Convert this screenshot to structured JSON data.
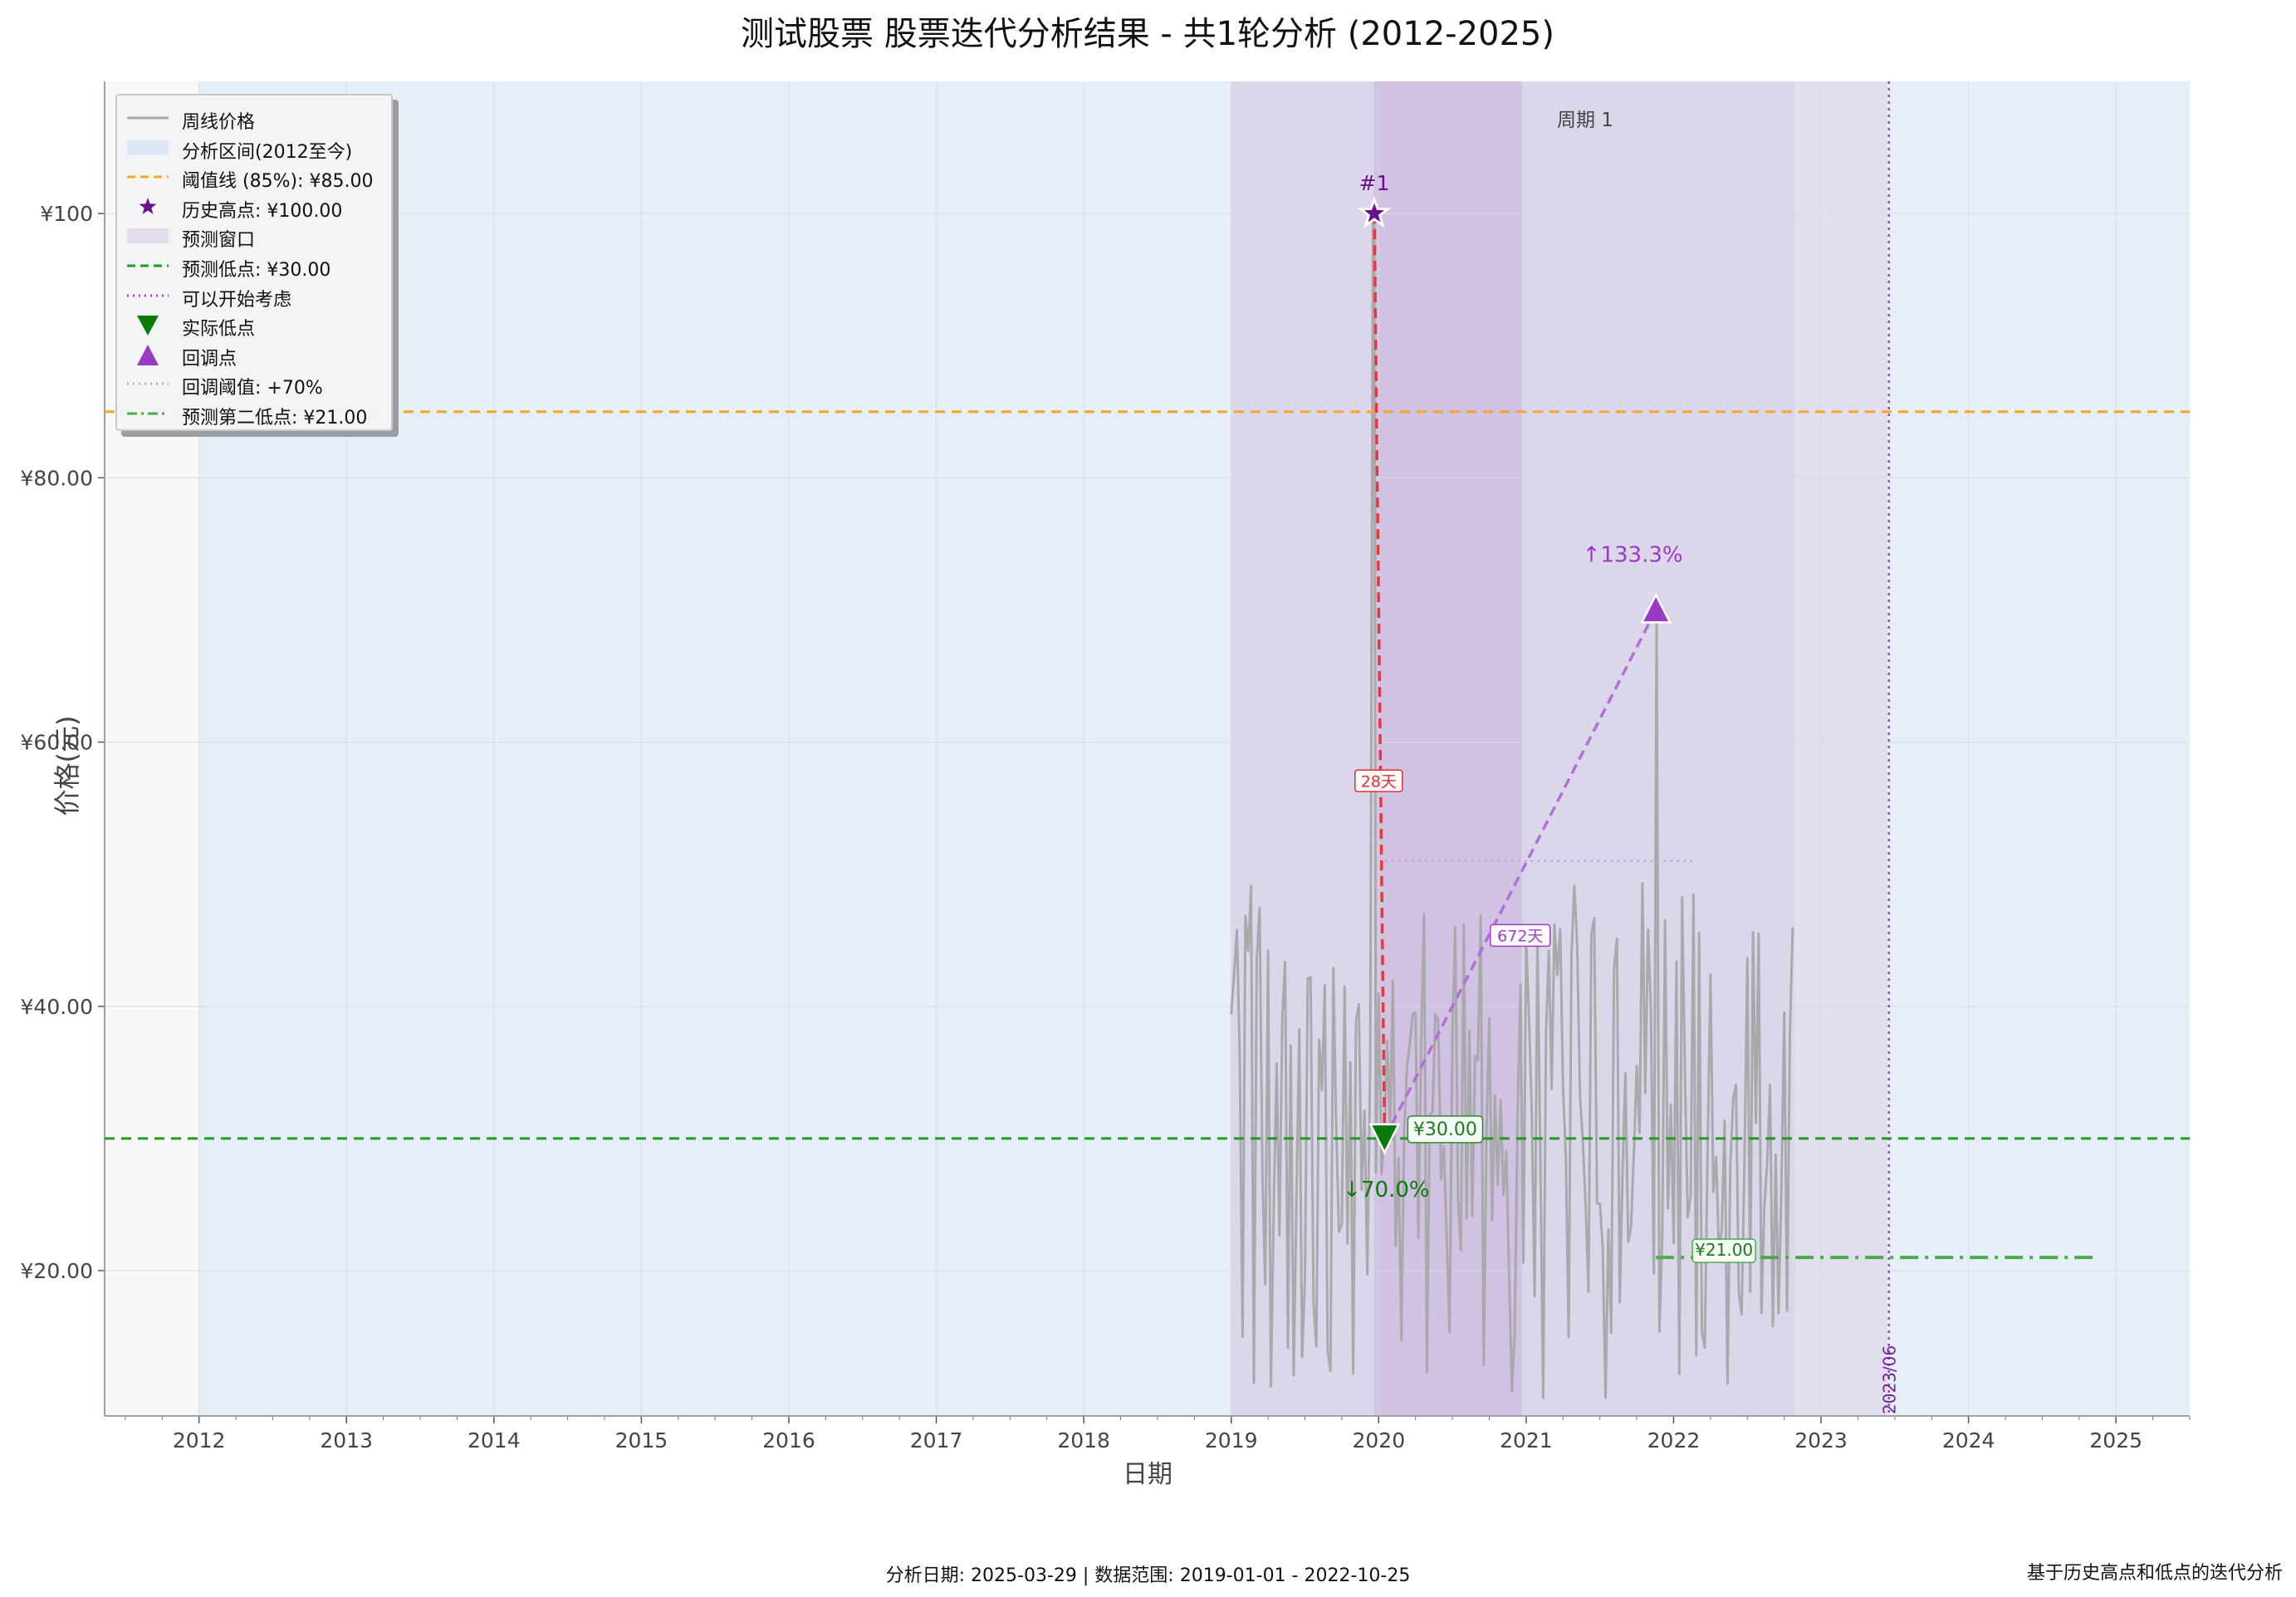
{
  "chart_data": {
    "type": "line",
    "title": "测试股票 股票迭代分析结果 - 共1轮分析 (2012-2025)",
    "xlabel": "日期",
    "ylabel": "价格(元)",
    "xlim": [
      2011.36,
      2025.5
    ],
    "ylim": [
      9,
      110
    ],
    "grid": true,
    "legend_placement": "top-left",
    "x_ticks": [
      "2012",
      "2013",
      "2014",
      "2015",
      "2016",
      "2017",
      "2018",
      "2019",
      "2020",
      "2021",
      "2022",
      "2023",
      "2024",
      "2025"
    ],
    "y_ticks": [
      {
        "value": 20,
        "label": "¥20.00"
      },
      {
        "value": 40,
        "label": "¥40.00"
      },
      {
        "value": 60,
        "label": "¥60.00"
      },
      {
        "value": 80,
        "label": "¥80.00"
      },
      {
        "value": 100,
        "label": "¥100"
      }
    ],
    "legend": [
      {
        "label": "周线价格",
        "kind": "line",
        "color": "#a9a9ab",
        "dash": "solid"
      },
      {
        "label": "分析区间(2012至今)",
        "kind": "patch",
        "color": "#dbe9f7"
      },
      {
        "label": "阈值线 (85%): ¥85.00",
        "kind": "line",
        "color": "#f5a623",
        "dash": "dashed"
      },
      {
        "label": "历史高点: ¥100.00",
        "kind": "star",
        "color": "#6a0f8e"
      },
      {
        "label": "预测窗口",
        "kind": "patch",
        "color": "#e4dcea"
      },
      {
        "label": "预测低点: ¥30.00",
        "kind": "line",
        "color": "#229a22",
        "dash": "dashed"
      },
      {
        "label": "可以开始考虑",
        "kind": "line",
        "color": "#a040c0",
        "dash": "dotted"
      },
      {
        "label": "实际低点",
        "kind": "tri-down",
        "color": "#0a7a0a"
      },
      {
        "label": "回调点",
        "kind": "tri-up",
        "color": "#9a38c8"
      },
      {
        "label": "回调阈值: +70%",
        "kind": "line",
        "color": "#c59be0",
        "dash": "dotted"
      },
      {
        "label": "预测第二低点: ¥21.00",
        "kind": "line",
        "color": "#4caa4c",
        "dash": "dashdot"
      }
    ],
    "series_price": {
      "name": "周线价格",
      "x_start": 2019.0,
      "x_end": 2022.82,
      "seed": 20250329,
      "min": 10,
      "max": 50,
      "peak": {
        "x": 2019.97,
        "y": 100
      },
      "low": {
        "x": 2020.04,
        "y": 30
      },
      "rebound": {
        "x": 2021.88,
        "y": 70
      }
    },
    "regions": [
      {
        "label": "分析区间(2012至今)",
        "x0": 2012.0,
        "x1": 2025.5,
        "color": "#dbe9f7",
        "alpha": 0.6
      },
      {
        "label": "周期 1",
        "x0": 2019.0,
        "x1": 2022.82,
        "color": "#d6d4ee",
        "alpha": 0.6
      },
      {
        "label": "预测窗口",
        "x0": 2019.0,
        "x1": 2023.45,
        "color": "#dccbe3",
        "alpha": 0.45
      },
      {
        "x0": 2019.97,
        "x1": 2020.97,
        "color": "#c9b2dc",
        "alpha": 0.6
      }
    ],
    "hlines": [
      {
        "y": 85,
        "color": "#f5a623",
        "dash": "12,8",
        "width": 3
      },
      {
        "y": 30,
        "color": "#229a22",
        "dash": "12,8",
        "width": 3
      }
    ],
    "vline": {
      "x": 2023.46,
      "label": "2023/06",
      "color": "#a040c0"
    },
    "rebound_threshold": {
      "y": 51,
      "x0": 2020.04,
      "x1": 2022.15
    },
    "second_low": {
      "y": 21,
      "x0": 2021.88,
      "x1": 2024.86,
      "label": "¥21.00"
    },
    "markers": {
      "peak": {
        "x": 2019.97,
        "y": 100,
        "label": "#1"
      },
      "low": {
        "x": 2020.04,
        "y": 30,
        "label": "¥30.00",
        "pct": "↓70.0%"
      },
      "rebound": {
        "x": 2021.88,
        "y": 70,
        "pct": "↑133.3%"
      }
    },
    "duration_labels": [
      {
        "text": "28天",
        "x": 2020.0,
        "y": 57,
        "color": "#e03030"
      },
      {
        "text": "672天",
        "x": 2020.96,
        "y": 45.3,
        "color": "#a040c0"
      }
    ],
    "cycle_label": "周期 1"
  },
  "footer": {
    "center": "分析日期: 2025-03-29 | 数据范围: 2019-01-01 - 2022-10-25",
    "right": "基于历史高点和低点的迭代分析"
  }
}
